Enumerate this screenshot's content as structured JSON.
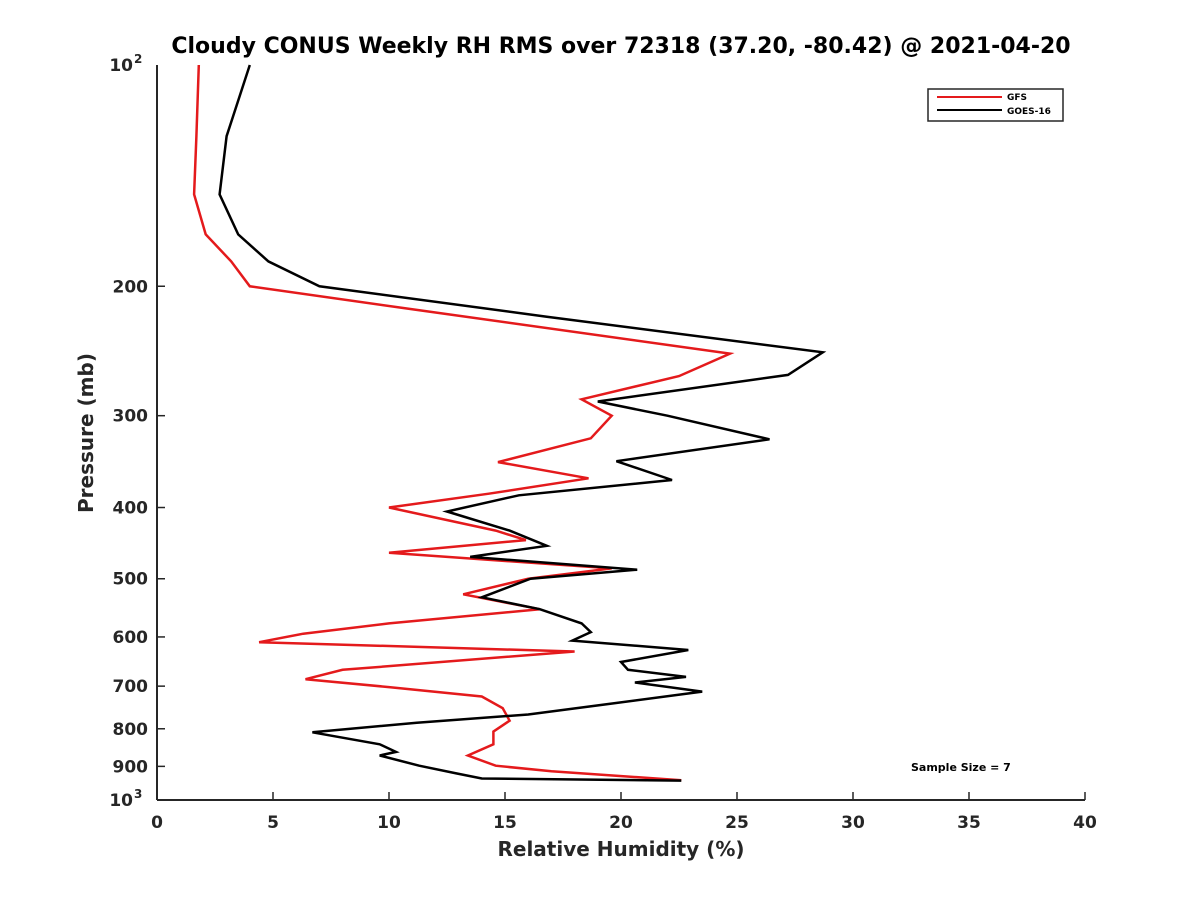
{
  "chart_data": {
    "type": "line",
    "title": "Cloudy CONUS Weekly RH RMS over 72318 (37.20, -80.42) @ 2021-04-20",
    "xlabel": "Relative Humidity (%)",
    "ylabel": "Pressure (mb)",
    "xlim": [
      0,
      40
    ],
    "ylim": [
      100,
      1000
    ],
    "yscale": "log",
    "yreversed": true,
    "grid": false,
    "legend_position": "top-right",
    "x_ticks": [
      0,
      5,
      10,
      15,
      20,
      25,
      30,
      35,
      40
    ],
    "x_tick_labels": [
      "0",
      "5",
      "10",
      "15",
      "20",
      "25",
      "30",
      "35",
      "40"
    ],
    "y_ticks": [
      200,
      300,
      400,
      500,
      600,
      700,
      800,
      900
    ],
    "y_tick_labels": [
      "200",
      "300",
      "400",
      "500",
      "600",
      "700",
      "800",
      "900"
    ],
    "y_end_ticks": [
      {
        "value": 100,
        "base": "10",
        "exp": "2"
      },
      {
        "value": 1000,
        "base": "10",
        "exp": "3"
      }
    ],
    "series": [
      {
        "name": "GFS",
        "color": "#e41a1c",
        "points": [
          [
            1.8,
            100
          ],
          [
            1.7,
            125
          ],
          [
            1.6,
            150
          ],
          [
            2.1,
            170
          ],
          [
            3.2,
            185
          ],
          [
            4.0,
            200
          ],
          [
            11.0,
            215
          ],
          [
            24.7,
            247
          ],
          [
            22.5,
            265
          ],
          [
            18.3,
            285
          ],
          [
            19.6,
            300
          ],
          [
            18.7,
            322
          ],
          [
            14.7,
            347
          ],
          [
            18.6,
            365
          ],
          [
            14.3,
            383
          ],
          [
            10.0,
            400
          ],
          [
            14.6,
            430
          ],
          [
            15.9,
            443
          ],
          [
            10.0,
            461
          ],
          [
            19.6,
            484
          ],
          [
            16.0,
            500
          ],
          [
            13.2,
            525
          ],
          [
            16.5,
            550
          ],
          [
            10.0,
            575
          ],
          [
            6.3,
            594
          ],
          [
            4.4,
            610
          ],
          [
            18.0,
            628
          ],
          [
            8.0,
            665
          ],
          [
            6.4,
            685
          ],
          [
            10.0,
            702
          ],
          [
            14.0,
            723
          ],
          [
            14.9,
            750
          ],
          [
            15.2,
            780
          ],
          [
            14.5,
            807
          ],
          [
            14.5,
            840
          ],
          [
            13.4,
            870
          ],
          [
            14.6,
            898
          ],
          [
            17.0,
            914
          ],
          [
            22.6,
            940
          ]
        ]
      },
      {
        "name": "GOES-16",
        "color": "#000000",
        "points": [
          [
            4.0,
            100
          ],
          [
            3.0,
            125
          ],
          [
            2.7,
            150
          ],
          [
            3.5,
            170
          ],
          [
            4.8,
            185
          ],
          [
            7.0,
            200
          ],
          [
            16.8,
            220
          ],
          [
            28.7,
            246
          ],
          [
            27.2,
            264
          ],
          [
            19.0,
            287
          ],
          [
            22.0,
            300
          ],
          [
            26.4,
            323
          ],
          [
            19.8,
            346
          ],
          [
            22.2,
            367
          ],
          [
            15.6,
            385
          ],
          [
            12.5,
            405
          ],
          [
            15.2,
            430
          ],
          [
            16.8,
            451
          ],
          [
            13.5,
            467
          ],
          [
            20.7,
            486
          ],
          [
            16.1,
            500
          ],
          [
            14.0,
            530
          ],
          [
            16.5,
            550
          ],
          [
            18.3,
            575
          ],
          [
            18.7,
            591
          ],
          [
            17.9,
            607
          ],
          [
            22.9,
            625
          ],
          [
            20.0,
            649
          ],
          [
            20.3,
            665
          ],
          [
            22.8,
            680
          ],
          [
            20.6,
            692
          ],
          [
            23.5,
            712
          ],
          [
            19.5,
            740
          ],
          [
            16.0,
            765
          ],
          [
            11.2,
            785
          ],
          [
            6.7,
            809
          ],
          [
            9.6,
            840
          ],
          [
            10.3,
            860
          ],
          [
            9.6,
            870
          ],
          [
            11.3,
            898
          ],
          [
            12.9,
            920
          ],
          [
            14.0,
            935
          ],
          [
            22.6,
            941
          ]
        ]
      }
    ],
    "annotations": [
      "Sample Size = 7"
    ]
  }
}
